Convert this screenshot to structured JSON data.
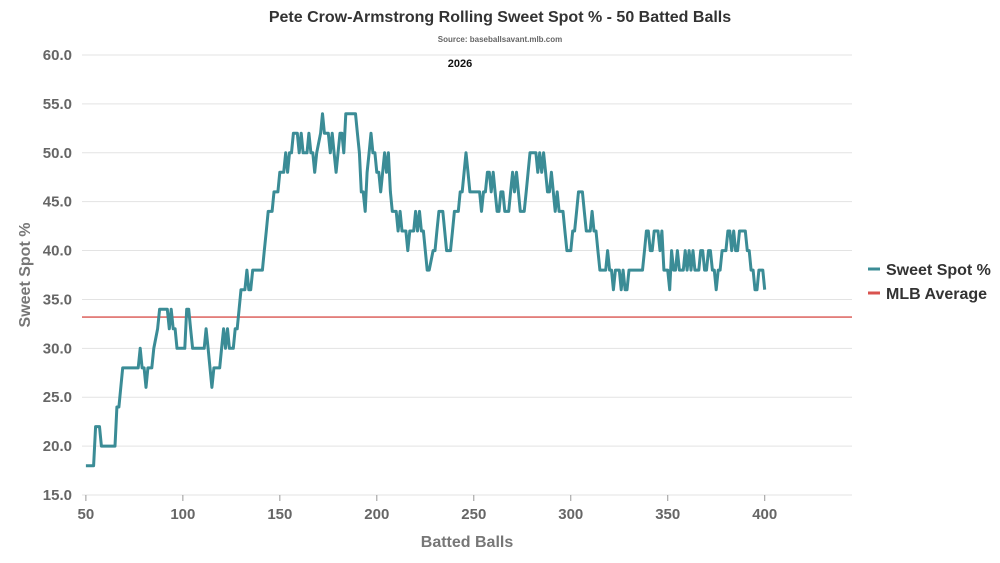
{
  "chart_data": {
    "type": "line",
    "title": "Pete Crow-Armstrong Rolling Sweet Spot % - 50 Batted Balls",
    "subtitle": "Source: baseballsavant.mlb.com",
    "annotation": "2026",
    "xlabel": "Batted Balls",
    "ylabel": "Sweet Spot %",
    "xlim": [
      48,
      445
    ],
    "ylim": [
      15,
      60
    ],
    "x_ticks": [
      50,
      100,
      150,
      200,
      250,
      300,
      350,
      400
    ],
    "y_ticks": [
      "15.0",
      "20.0",
      "25.0",
      "30.0",
      "35.0",
      "40.0",
      "45.0",
      "50.0",
      "55.0",
      "60.0"
    ],
    "grid": "horizontal",
    "legend_position": "right",
    "series": [
      {
        "name": "Sweet Spot %",
        "color": "#3b8c96",
        "points": [
          [
            50,
            18
          ],
          [
            54,
            18
          ],
          [
            55,
            22
          ],
          [
            57,
            22
          ],
          [
            58,
            20
          ],
          [
            65,
            20
          ],
          [
            66,
            24
          ],
          [
            67,
            24
          ],
          [
            68,
            26
          ],
          [
            69,
            28
          ],
          [
            77,
            28
          ],
          [
            78,
            30
          ],
          [
            79,
            28
          ],
          [
            80,
            28
          ],
          [
            81,
            26
          ],
          [
            82,
            28
          ],
          [
            84,
            28
          ],
          [
            85,
            30
          ],
          [
            87,
            32
          ],
          [
            88,
            34
          ],
          [
            92,
            34
          ],
          [
            93,
            32
          ],
          [
            94,
            34
          ],
          [
            95,
            32
          ],
          [
            96,
            32
          ],
          [
            97,
            30
          ],
          [
            101,
            30
          ],
          [
            102,
            34
          ],
          [
            103,
            34
          ],
          [
            104,
            32
          ],
          [
            105,
            30
          ],
          [
            111,
            30
          ],
          [
            112,
            32
          ],
          [
            113,
            30
          ],
          [
            114,
            28
          ],
          [
            115,
            26
          ],
          [
            116,
            28
          ],
          [
            119,
            28
          ],
          [
            120,
            30
          ],
          [
            121,
            32
          ],
          [
            122,
            30
          ],
          [
            123,
            32
          ],
          [
            124,
            30
          ],
          [
            126,
            30
          ],
          [
            127,
            32
          ],
          [
            128,
            32
          ],
          [
            129,
            34
          ],
          [
            130,
            36
          ],
          [
            132,
            36
          ],
          [
            133,
            38
          ],
          [
            134,
            36
          ],
          [
            135,
            36
          ],
          [
            136,
            38
          ],
          [
            141,
            38
          ],
          [
            142,
            40
          ],
          [
            143,
            42
          ],
          [
            144,
            44
          ],
          [
            146,
            44
          ],
          [
            147,
            46
          ],
          [
            149,
            46
          ],
          [
            150,
            48
          ],
          [
            152,
            48
          ],
          [
            153,
            50
          ],
          [
            154,
            48
          ],
          [
            155,
            50
          ],
          [
            156,
            50
          ],
          [
            157,
            52
          ],
          [
            159,
            52
          ],
          [
            160,
            50
          ],
          [
            161,
            52
          ],
          [
            162,
            50
          ],
          [
            164,
            50
          ],
          [
            165,
            52
          ],
          [
            166,
            50
          ],
          [
            167,
            50
          ],
          [
            168,
            48
          ],
          [
            169,
            50
          ],
          [
            171,
            52
          ],
          [
            172,
            54
          ],
          [
            173,
            52
          ],
          [
            175,
            52
          ],
          [
            176,
            50
          ],
          [
            177,
            52
          ],
          [
            178,
            50
          ],
          [
            179,
            48
          ],
          [
            181,
            52
          ],
          [
            182,
            52
          ],
          [
            183,
            50
          ],
          [
            184,
            54
          ],
          [
            189,
            54
          ],
          [
            190,
            52
          ],
          [
            191,
            50
          ],
          [
            192,
            46
          ],
          [
            193,
            46
          ],
          [
            194,
            44
          ],
          [
            195,
            48
          ],
          [
            196,
            50
          ],
          [
            197,
            52
          ],
          [
            198,
            50
          ],
          [
            199,
            50
          ],
          [
            200,
            48
          ],
          [
            201,
            48
          ],
          [
            202,
            46
          ],
          [
            204,
            50
          ],
          [
            205,
            48
          ],
          [
            206,
            50
          ],
          [
            207,
            46
          ],
          [
            208,
            44
          ],
          [
            210,
            44
          ],
          [
            211,
            42
          ],
          [
            212,
            44
          ],
          [
            213,
            42
          ],
          [
            215,
            42
          ],
          [
            216,
            40
          ],
          [
            217,
            42
          ],
          [
            219,
            42
          ],
          [
            220,
            44
          ],
          [
            221,
            42
          ],
          [
            222,
            44
          ],
          [
            223,
            42
          ],
          [
            224,
            42
          ],
          [
            225,
            40
          ],
          [
            226,
            38
          ],
          [
            227,
            38
          ],
          [
            229,
            40
          ],
          [
            230,
            40
          ],
          [
            231,
            42
          ],
          [
            232,
            44
          ],
          [
            234,
            44
          ],
          [
            235,
            42
          ],
          [
            236,
            40
          ],
          [
            238,
            40
          ],
          [
            239,
            42
          ],
          [
            240,
            44
          ],
          [
            242,
            44
          ],
          [
            243,
            46
          ],
          [
            244,
            46
          ],
          [
            245,
            48
          ],
          [
            246,
            50
          ],
          [
            247,
            48
          ],
          [
            248,
            46
          ],
          [
            253,
            46
          ],
          [
            254,
            44
          ],
          [
            255,
            46
          ],
          [
            256,
            46
          ],
          [
            257,
            48
          ],
          [
            258,
            48
          ],
          [
            259,
            46
          ],
          [
            260,
            48
          ],
          [
            261,
            46
          ],
          [
            262,
            44
          ],
          [
            263,
            44
          ],
          [
            264,
            46
          ],
          [
            265,
            46
          ],
          [
            266,
            44
          ],
          [
            268,
            44
          ],
          [
            269,
            46
          ],
          [
            270,
            48
          ],
          [
            271,
            46
          ],
          [
            272,
            48
          ],
          [
            273,
            46
          ],
          [
            274,
            44
          ],
          [
            276,
            44
          ],
          [
            277,
            46
          ],
          [
            278,
            48
          ],
          [
            279,
            50
          ],
          [
            282,
            50
          ],
          [
            283,
            48
          ],
          [
            284,
            50
          ],
          [
            285,
            48
          ],
          [
            286,
            50
          ],
          [
            287,
            48
          ],
          [
            288,
            46
          ],
          [
            289,
            46
          ],
          [
            290,
            48
          ],
          [
            291,
            46
          ],
          [
            292,
            44
          ],
          [
            293,
            46
          ],
          [
            294,
            44
          ],
          [
            296,
            44
          ],
          [
            297,
            42
          ],
          [
            298,
            40
          ],
          [
            300,
            40
          ],
          [
            301,
            42
          ],
          [
            302,
            42
          ],
          [
            303,
            44
          ],
          [
            304,
            46
          ],
          [
            306,
            46
          ],
          [
            307,
            44
          ],
          [
            308,
            42
          ],
          [
            310,
            42
          ],
          [
            311,
            44
          ],
          [
            312,
            42
          ],
          [
            313,
            42
          ],
          [
            314,
            40
          ],
          [
            315,
            38
          ],
          [
            318,
            38
          ],
          [
            319,
            40
          ],
          [
            320,
            38
          ],
          [
            321,
            38
          ],
          [
            322,
            36
          ],
          [
            323,
            38
          ],
          [
            325,
            38
          ],
          [
            326,
            36
          ],
          [
            327,
            38
          ],
          [
            328,
            36
          ],
          [
            329,
            36
          ],
          [
            330,
            38
          ],
          [
            337,
            38
          ],
          [
            338,
            40
          ],
          [
            339,
            42
          ],
          [
            340,
            42
          ],
          [
            341,
            40
          ],
          [
            342,
            40
          ],
          [
            343,
            42
          ],
          [
            345,
            42
          ],
          [
            346,
            40
          ],
          [
            347,
            42
          ],
          [
            348,
            38
          ],
          [
            350,
            38
          ],
          [
            351,
            36
          ],
          [
            352,
            40
          ],
          [
            353,
            38
          ],
          [
            354,
            38
          ],
          [
            355,
            40
          ],
          [
            356,
            38
          ],
          [
            358,
            38
          ],
          [
            359,
            40
          ],
          [
            360,
            38
          ],
          [
            361,
            40
          ],
          [
            362,
            38
          ],
          [
            363,
            40
          ],
          [
            364,
            38
          ],
          [
            366,
            38
          ],
          [
            367,
            40
          ],
          [
            368,
            40
          ],
          [
            369,
            38
          ],
          [
            370,
            38
          ],
          [
            371,
            40
          ],
          [
            372,
            40
          ],
          [
            373,
            38
          ],
          [
            374,
            38
          ],
          [
            375,
            36
          ],
          [
            376,
            38
          ],
          [
            377,
            38
          ],
          [
            378,
            40
          ],
          [
            380,
            40
          ],
          [
            381,
            42
          ],
          [
            382,
            42
          ],
          [
            383,
            40
          ],
          [
            384,
            42
          ],
          [
            385,
            40
          ],
          [
            386,
            40
          ],
          [
            387,
            42
          ],
          [
            390,
            42
          ],
          [
            391,
            40
          ],
          [
            392,
            40
          ],
          [
            393,
            38
          ],
          [
            394,
            38
          ],
          [
            395,
            36
          ],
          [
            396,
            36
          ],
          [
            397,
            38
          ],
          [
            398,
            38
          ],
          [
            399,
            38
          ],
          [
            400,
            36
          ]
        ]
      },
      {
        "name": "MLB Average",
        "color": "#d9534f",
        "value": 33.2
      }
    ]
  }
}
